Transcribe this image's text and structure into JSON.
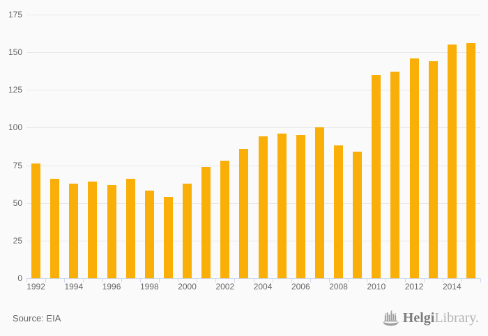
{
  "chart_data": {
    "type": "bar",
    "title": "",
    "xlabel": "",
    "ylabel": "",
    "categories": [
      "1992",
      "1993",
      "1994",
      "1995",
      "1996",
      "1997",
      "1998",
      "1999",
      "2000",
      "2001",
      "2002",
      "2003",
      "2004",
      "2005",
      "2006",
      "2007",
      "2008",
      "2009",
      "2010",
      "2011",
      "2012",
      "2013",
      "2014",
      "2015"
    ],
    "values": [
      76,
      66,
      63,
      64,
      62,
      66,
      58,
      54,
      63,
      74,
      78,
      86,
      94,
      96,
      95,
      100,
      88,
      84,
      135,
      137,
      146,
      144,
      155,
      156
    ],
    "ylim": [
      0,
      175
    ],
    "ytick_step": 25,
    "x_label_every": 2,
    "grid": true,
    "legend": "none"
  },
  "style": {
    "bar_color": "#F9AF08",
    "grid_color": "#E8E8E8",
    "axis_color": "#CCD6EB",
    "label_color": "#666666",
    "background": "#FAFAFA"
  },
  "footer": {
    "source": "Source: EIA"
  },
  "logo": {
    "primary": "Helgi",
    "secondary": "Library."
  }
}
